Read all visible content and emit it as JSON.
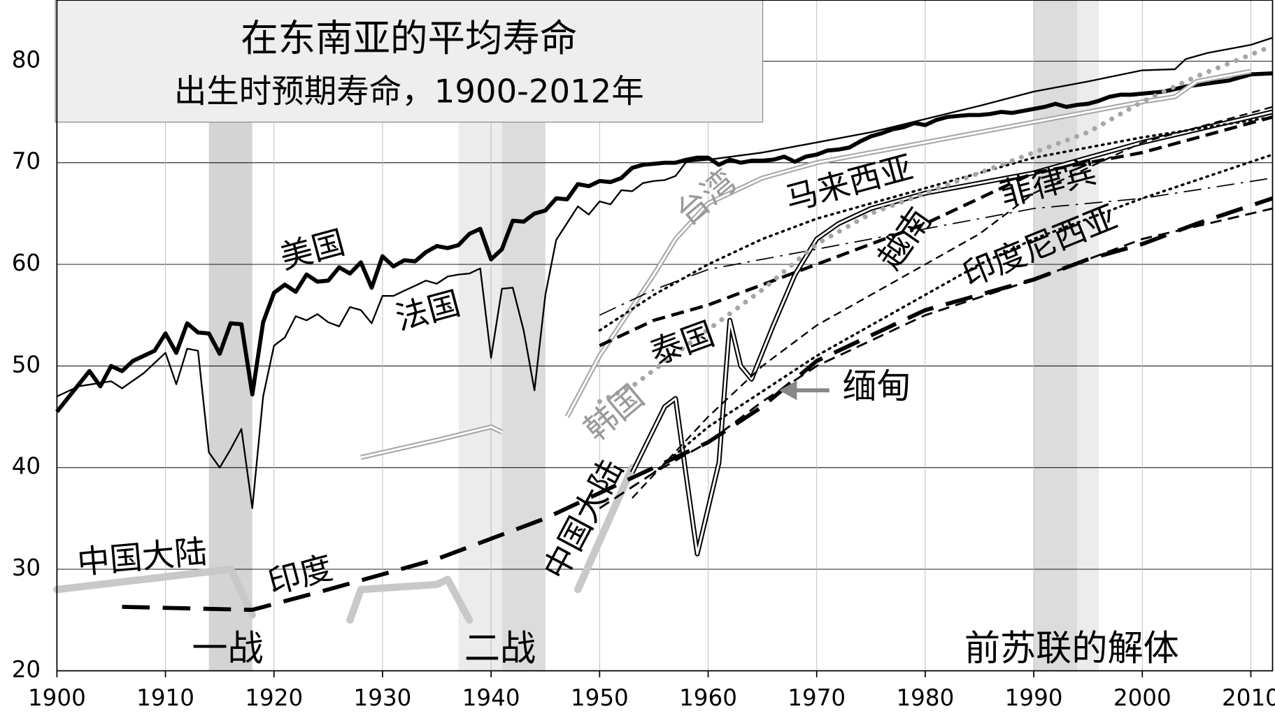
{
  "chart_data": {
    "type": "line",
    "title": "在东南亚的平均寿命",
    "subtitle": "出生时预期寿命，1900-2012年",
    "xlim": [
      1900,
      2012
    ],
    "ylim": [
      20,
      86
    ],
    "xticks": [
      1900,
      1910,
      1920,
      1930,
      1940,
      1950,
      1960,
      1970,
      1980,
      1990,
      2000,
      2010
    ],
    "yticks": [
      20,
      30,
      40,
      50,
      60,
      70,
      80
    ],
    "grid": true,
    "shaded_regions": [
      {
        "start": 1914,
        "end": 1918,
        "color": "#d4d4d4",
        "label": "一战"
      },
      {
        "start": 1937,
        "end": 1941,
        "color": "#ececec"
      },
      {
        "start": 1941,
        "end": 1945,
        "color": "#dcdcdc",
        "label": "二战"
      },
      {
        "start": 1990,
        "end": 1994,
        "color": "#dcdcdc"
      },
      {
        "start": 1994,
        "end": 1996,
        "color": "#ececec",
        "label": "前苏联的解体"
      }
    ],
    "annotations": [
      "缅甸"
    ],
    "series": [
      {
        "name": "美国",
        "color": "#000000",
        "style": "thick",
        "x": [
          1900,
          1903,
          1904,
          1905,
          1906,
          1907,
          1909,
          1910,
          1911,
          1912,
          1913,
          1914,
          1915,
          1916,
          1917,
          1918,
          1919,
          1920,
          1921,
          1922,
          1923,
          1924,
          1925,
          1926,
          1927,
          1928,
          1929,
          1930,
          1931,
          1932,
          1933,
          1934,
          1935,
          1936,
          1937,
          1938,
          1939,
          1940,
          1941,
          1942,
          1943,
          1944,
          1945,
          1946,
          1947,
          1948,
          1949,
          1950,
          1951,
          1952,
          1953,
          1954,
          1955,
          1956,
          1957,
          1958,
          1959,
          1960,
          1961,
          1962,
          1963,
          1964,
          1965,
          1966,
          1967,
          1968,
          1969,
          1970,
          1971,
          1972,
          1973,
          1974,
          1975,
          1976,
          1977,
          1978,
          1979,
          1980,
          1981,
          1982,
          1983,
          1984,
          1985,
          1986,
          1987,
          1988,
          1989,
          1990,
          1991,
          1992,
          1993,
          1994,
          1995,
          1996,
          1997,
          1998,
          1999,
          2000,
          2002,
          2004,
          2006,
          2008,
          2010,
          2012
        ],
        "values": [
          45.5,
          49.5,
          48,
          50,
          49.5,
          50.5,
          51.5,
          53.2,
          51.3,
          54.2,
          53.3,
          53.2,
          51.2,
          54.2,
          54.1,
          47.2,
          54.3,
          57.2,
          58,
          57.3,
          59,
          58.3,
          58.4,
          59.7,
          59.1,
          60.2,
          57.7,
          60.8,
          59.8,
          60.4,
          60.3,
          61.2,
          61.8,
          61.6,
          61.9,
          63,
          63.5,
          60.5,
          61.5,
          64.3,
          64.2,
          65,
          65.3,
          66.5,
          66.4,
          67.9,
          67.7,
          68.2,
          68.1,
          68.5,
          69.5,
          69.8,
          69.9,
          70,
          70,
          70.3,
          70.5,
          70.5,
          69.8,
          70.3,
          70,
          70.2,
          70.2,
          70.3,
          70.6,
          70.1,
          70.6,
          70.8,
          71.2,
          71.3,
          71.5,
          72.1,
          72.6,
          72.9,
          73.3,
          73.5,
          73.9,
          73.7,
          74.2,
          74.5,
          74.6,
          74.7,
          74.7,
          74.8,
          75,
          74.9,
          75.1,
          75.3,
          75.5,
          75.8,
          75.5,
          75.7,
          75.8,
          76.1,
          76.5,
          76.7,
          76.7,
          76.8,
          77,
          77.5,
          77.8,
          78.1,
          78.7,
          78.8
        ]
      },
      {
        "name": "法国",
        "color": "#000000",
        "style": "thin",
        "x": [
          1900,
          1902,
          1905,
          1906,
          1908,
          1910,
          1911,
          1912,
          1913,
          1914,
          1915,
          1916,
          1917,
          1918,
          1919,
          1920,
          1921,
          1922,
          1923,
          1924,
          1925,
          1926,
          1927,
          1928,
          1929,
          1930,
          1931,
          1932,
          1933,
          1934,
          1935,
          1936,
          1937,
          1938,
          1939,
          1940,
          1941,
          1942,
          1943,
          1944,
          1945,
          1946,
          1948,
          1949,
          1950,
          1951,
          1952,
          1953,
          1954,
          1955,
          1956,
          1957,
          1958,
          1960,
          1965,
          1970,
          1975,
          1980,
          1985,
          1990,
          1995,
          2000,
          2003,
          2004,
          2006,
          2010,
          2012
        ],
        "values": [
          47,
          48,
          48.5,
          47.8,
          49.3,
          51.3,
          48.2,
          51.7,
          51.5,
          41.5,
          40,
          41.8,
          43.8,
          36,
          47,
          52,
          52.8,
          54.9,
          54.5,
          55.1,
          54.3,
          53.9,
          55.8,
          55.5,
          54.2,
          56.9,
          56.9,
          57.4,
          57.9,
          58.4,
          58.1,
          58.8,
          59,
          59.1,
          59.6,
          50.8,
          57.6,
          57.7,
          53.5,
          47.6,
          57,
          62.4,
          65.7,
          64.9,
          66.2,
          65.9,
          67.3,
          67.2,
          68,
          68.2,
          68.3,
          68.7,
          70.1,
          70.3,
          71,
          72,
          73,
          74.3,
          75.6,
          77,
          78,
          79.1,
          79.2,
          80.2,
          80.8,
          81.6,
          82.3
        ]
      },
      {
        "name": "台湾",
        "color": "#a6a6a6",
        "style": "double",
        "x": [
          1928,
          1935,
          1940,
          1941,
          1944,
          1947,
          1950,
          1955,
          1957,
          1960,
          1965,
          1970,
          1975,
          1980,
          1985,
          1990,
          1995,
          2000,
          2003,
          2005,
          2010
        ],
        "values": [
          41,
          42.7,
          44,
          43.5,
          null,
          45,
          51,
          59,
          62.5,
          66,
          68.5,
          70,
          71,
          72,
          73,
          74,
          75,
          76,
          76.5,
          78,
          79
        ]
      },
      {
        "name": "中国大陆",
        "color": "#c8c8c8",
        "style": "heavy",
        "x": [
          1900,
          1916,
          1918,
          1922,
          1927,
          1928,
          1935,
          1936,
          1938,
          1944,
          1948,
          1953
        ],
        "values": [
          28,
          30,
          25.5,
          null,
          25,
          28,
          28.5,
          29,
          25,
          null,
          28,
          40
        ]
      },
      {
        "color": "#000000",
        "style": "double",
        "x": [
          1953,
          1956,
          1957,
          1958,
          1959,
          1961,
          1962,
          1963,
          1964,
          1966,
          1968,
          1970,
          1972,
          1975,
          1980,
          1990,
          2000,
          2012
        ],
        "values": [
          39.5,
          46,
          46.8,
          39,
          31.5,
          40.5,
          54.5,
          50,
          48.7,
          54,
          59,
          62.5,
          64,
          65.5,
          67,
          69,
          72,
          75
        ]
      },
      {
        "name": "印度",
        "color": "#000000",
        "style": "long-dash",
        "x": [
          1906,
          1918,
          1925,
          1930,
          1935,
          1940,
          1945,
          1950,
          1955,
          1960,
          1965,
          1970,
          1975,
          1980,
          1985,
          1990,
          1995,
          2000,
          2005,
          2012
        ],
        "values": [
          26.3,
          26,
          28,
          29.5,
          31,
          33,
          35,
          37.5,
          40,
          42.5,
          46,
          50.5,
          53,
          55.5,
          57,
          58.5,
          60.5,
          62,
          64,
          66.5
        ]
      },
      {
        "color": "#000000",
        "style": "dash",
        "x": [
          1950,
          1955,
          1960,
          1965,
          1970,
          1975,
          1980,
          1990,
          2000,
          2012
        ],
        "values": [
          36,
          39.5,
          42.5,
          46.5,
          50,
          52.5,
          55,
          58.5,
          62.5,
          65.5
        ]
      },
      {
        "name": "泰国",
        "color": "#000000",
        "style": "bold-dash",
        "x": [
          1950,
          1955,
          1960,
          1965,
          1970,
          1975,
          1980,
          1985,
          1990,
          2000,
          2012
        ],
        "values": [
          52,
          54.5,
          56,
          58,
          60,
          62,
          64,
          66.5,
          69,
          71,
          74.5
        ]
      },
      {
        "name": "越南",
        "color": "#000000",
        "style": "thin-dash",
        "x": [
          1953,
          1960,
          1965,
          1970,
          1975,
          1980,
          1985,
          1990,
          2000,
          2012
        ],
        "values": [
          37,
          45,
          50,
          54,
          57,
          60,
          63,
          67,
          72,
          75.5
        ]
      },
      {
        "name": "马来西亚",
        "color": "#000000",
        "style": "dot",
        "x": [
          1950,
          1955,
          1960,
          1965,
          1970,
          1975,
          1980,
          1990,
          2000,
          2012
        ],
        "values": [
          53.5,
          57,
          60,
          62.5,
          64.5,
          66,
          67.5,
          70.5,
          72.5,
          74.5
        ]
      },
      {
        "name": "菲律宾",
        "color": "#000000",
        "style": "dash-dot",
        "x": [
          1950,
          1955,
          1960,
          1965,
          1970,
          1975,
          1980,
          1990,
          2000,
          2012
        ],
        "values": [
          55,
          57.5,
          59.5,
          60.5,
          61.5,
          62.5,
          63.5,
          65.5,
          66.5,
          68.5
        ]
      },
      {
        "name": "印度尼西亚",
        "color": "#000000",
        "style": "dot",
        "x": [
          1955,
          1960,
          1965,
          1970,
          1975,
          1980,
          1985,
          1990,
          2000,
          2012
        ],
        "values": [
          39.5,
          44,
          47.5,
          51,
          54,
          57,
          60,
          62.5,
          66.5,
          70.8
        ]
      },
      {
        "name": "韩国",
        "color": "#a6a6a6",
        "style": "heavy-dot",
        "x": [
          1950,
          1953,
          1958,
          1965,
          1970,
          1975,
          1980,
          1985,
          1990,
          1995,
          2000,
          2005,
          2012
        ],
        "values": [
          46.5,
          48,
          52,
          57.5,
          62,
          65,
          67,
          69,
          71,
          73,
          76,
          78.5,
          81.5
        ]
      }
    ]
  }
}
